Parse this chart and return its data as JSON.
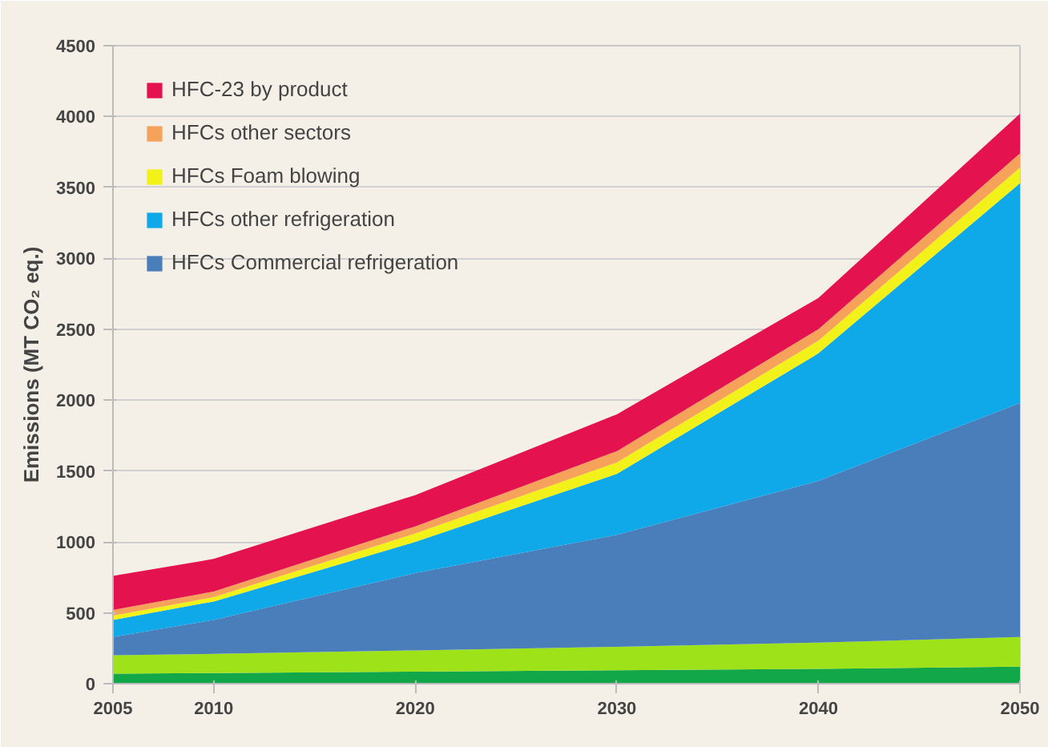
{
  "chart_data": {
    "type": "area",
    "stacked": true,
    "ylabel": "Emissions (MT CO₂ eq.)",
    "x": [
      2005,
      2010,
      2020,
      2030,
      2040,
      2050
    ],
    "xlim": [
      2005,
      2050
    ],
    "xticks": [
      2005,
      2010,
      2020,
      2030,
      2040,
      2050
    ],
    "ylim": [
      0,
      4500
    ],
    "yticks": [
      0,
      500,
      1000,
      1500,
      2000,
      2500,
      3000,
      3500,
      4000,
      4500
    ],
    "grid": "y",
    "legend": "top left",
    "series": [
      {
        "color": "#12a84a",
        "values": [
          70,
          75,
          85,
          95,
          105,
          120
        ]
      },
      {
        "color": "#9ee21a",
        "values": [
          130,
          135,
          150,
          165,
          185,
          210
        ]
      },
      {
        "name": "HFCs Commercial refrigeration",
        "color": "#4a7ebb",
        "values": [
          130,
          240,
          545,
          790,
          1140,
          1650
        ]
      },
      {
        "name": "HFCs other refrigeration",
        "color": "#0fa9ea",
        "values": [
          120,
          130,
          220,
          430,
          900,
          1550
        ]
      },
      {
        "name": "HFCs Foam blowing",
        "color": "#f2f21a",
        "values": [
          30,
          30,
          60,
          80,
          90,
          110
        ]
      },
      {
        "name": "HFCs other sectors",
        "color": "#f7a25a",
        "values": [
          40,
          40,
          50,
          80,
          80,
          100
        ]
      },
      {
        "name": "HFC-23 by product",
        "color": "#e4134f",
        "values": [
          240,
          230,
          220,
          260,
          220,
          280
        ]
      }
    ]
  }
}
